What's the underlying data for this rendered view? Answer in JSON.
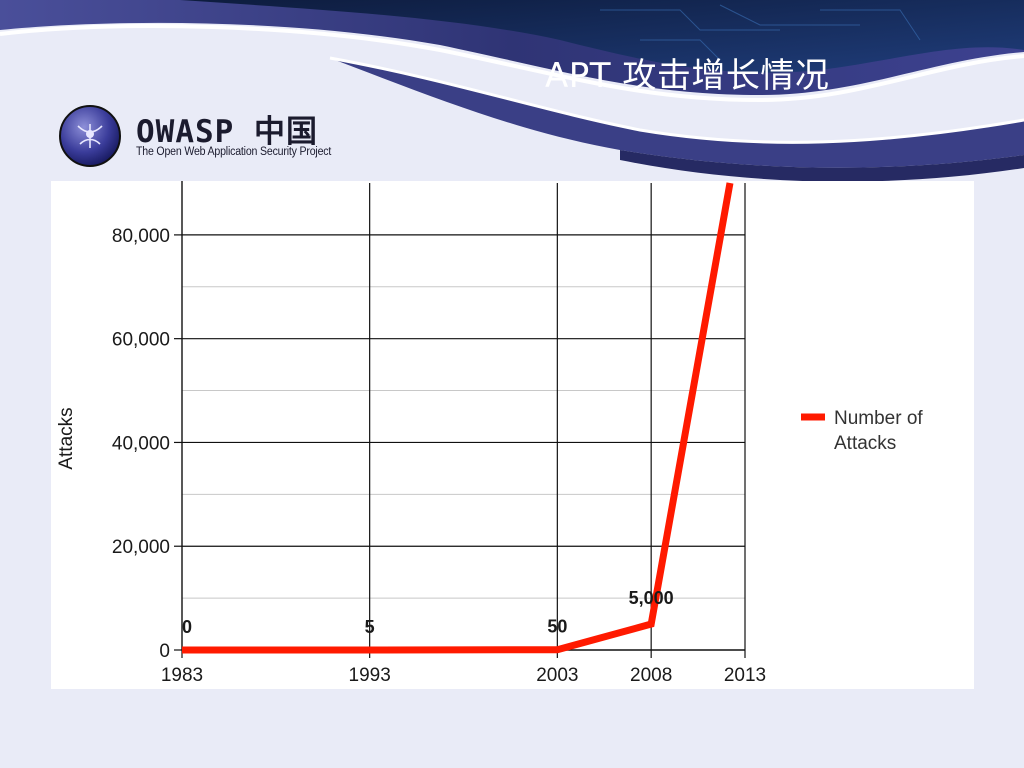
{
  "slide": {
    "title": "APT 攻击增长情况"
  },
  "logo": {
    "name": "OWASP 中国",
    "tagline": "The Open Web Application Security Project"
  },
  "colors": {
    "series": "#ff1a00",
    "header_dark": "#3a3f86",
    "background": "#e9ebf7"
  },
  "chart_data": {
    "type": "line",
    "title": "",
    "xlabel": "",
    "ylabel": "Attacks",
    "x": [
      1983,
      1993,
      2003,
      2008,
      2013
    ],
    "x_ticks": [
      "1983",
      "1993",
      "2003",
      "2008",
      "2013"
    ],
    "y_ticks": [
      "0",
      "20,000",
      "40,000",
      "60,000",
      "80,000"
    ],
    "xlim": [
      1983,
      2013
    ],
    "ylim": [
      0,
      90000
    ],
    "grid": true,
    "legend_position": "right",
    "series": [
      {
        "name": "Number of Attacks",
        "points": [
          [
            1983,
            0
          ],
          [
            1993,
            5
          ],
          [
            2003,
            50
          ],
          [
            2008,
            5000
          ],
          [
            2012.2,
            90000
          ]
        ],
        "data_labels": [
          {
            "x": 1983,
            "y": 0,
            "text": "0"
          },
          {
            "x": 1993,
            "y": 5,
            "text": "5"
          },
          {
            "x": 2003,
            "y": 50,
            "text": "50"
          },
          {
            "x": 2008,
            "y": 5000,
            "text": "5,000"
          }
        ]
      }
    ]
  }
}
